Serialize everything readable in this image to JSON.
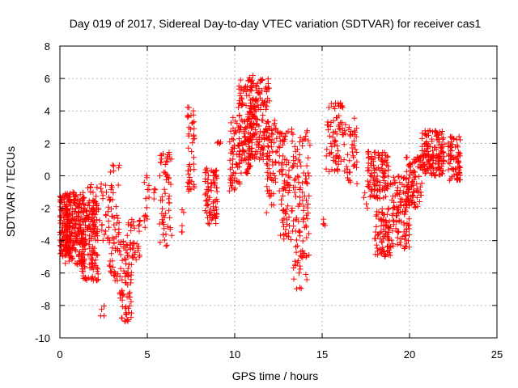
{
  "chart_data": {
    "type": "scatter",
    "title": "Day 019 of 2017, Sidereal Day-to-day VTEC variation (SDTVAR) for receiver cas1",
    "xlabel": "GPS time / hours",
    "ylabel": "SDTVAR / TECUs",
    "xlim": [
      0,
      25
    ],
    "ylim": [
      -10,
      8
    ],
    "xticks": [
      0,
      5,
      10,
      15,
      20,
      25
    ],
    "yticks": [
      -10,
      -8,
      -6,
      -4,
      -2,
      0,
      2,
      4,
      6,
      8
    ],
    "xtick_labels": [
      "0",
      "5",
      "10",
      "15",
      "20",
      "25"
    ],
    "ytick_labels": [
      "-10",
      "-8",
      "-6",
      "-4",
      "-2",
      "0",
      "2",
      "4",
      "6",
      "8"
    ],
    "grid": true,
    "marker": "+",
    "color": "#ff0000",
    "series": [
      {
        "name": "SDTVAR",
        "clusters": [
          {
            "x": [
              0.0,
              0.6
            ],
            "y": [
              -5.0,
              -1.2
            ],
            "n": 140
          },
          {
            "x": [
              0.3,
              1.4
            ],
            "y": [
              -5.5,
              -1.0
            ],
            "n": 200
          },
          {
            "x": [
              1.2,
              2.2
            ],
            "y": [
              -6.5,
              -1.5
            ],
            "n": 140
          },
          {
            "x": [
              1.6,
              2.8
            ],
            "y": [
              -4.0,
              -0.5
            ],
            "n": 60
          },
          {
            "x": [
              2.3,
              2.6
            ],
            "y": [
              -9.0,
              -8.0
            ],
            "n": 4
          },
          {
            "x": [
              2.8,
              3.4
            ],
            "y": [
              -6.5,
              0.8
            ],
            "n": 60
          },
          {
            "x": [
              3.4,
              4.1
            ],
            "y": [
              -9.0,
              -4.0
            ],
            "n": 70
          },
          {
            "x": [
              3.8,
              4.6
            ],
            "y": [
              -5.5,
              -2.5
            ],
            "n": 40
          },
          {
            "x": [
              4.8,
              5.1
            ],
            "y": [
              -3.5,
              0.3
            ],
            "n": 15
          },
          {
            "x": [
              5.3,
              5.5
            ],
            "y": [
              -1.5,
              -0.8
            ],
            "n": 4
          },
          {
            "x": [
              5.7,
              6.4
            ],
            "y": [
              -4.5,
              1.5
            ],
            "n": 60
          },
          {
            "x": [
              6.9,
              7.1
            ],
            "y": [
              -3.5,
              -2.0
            ],
            "n": 5
          },
          {
            "x": [
              7.3,
              7.7
            ],
            "y": [
              -1.0,
              4.6
            ],
            "n": 45
          },
          {
            "x": [
              8.3,
              9.0
            ],
            "y": [
              -3.0,
              0.5
            ],
            "n": 80
          },
          {
            "x": [
              9.0,
              9.2
            ],
            "y": [
              1.8,
              2.2
            ],
            "n": 5
          },
          {
            "x": [
              9.7,
              10.3
            ],
            "y": [
              -1.0,
              3.8
            ],
            "n": 60
          },
          {
            "x": [
              10.2,
              11.0
            ],
            "y": [
              0.0,
              6.0
            ],
            "n": 120
          },
          {
            "x": [
              10.8,
              12.0
            ],
            "y": [
              1.0,
              6.2
            ],
            "n": 170
          },
          {
            "x": [
              11.8,
              12.3
            ],
            "y": [
              -2.5,
              3.5
            ],
            "n": 50
          },
          {
            "x": [
              12.3,
              13.3
            ],
            "y": [
              -1.0,
              3.0
            ],
            "n": 60
          },
          {
            "x": [
              12.6,
              13.5
            ],
            "y": [
              -4.0,
              -0.5
            ],
            "n": 40
          },
          {
            "x": [
              13.3,
              14.3
            ],
            "y": [
              -7.0,
              3.0
            ],
            "n": 110
          },
          {
            "x": [
              15.0,
              15.2
            ],
            "y": [
              -3.5,
              -2.5
            ],
            "n": 4
          },
          {
            "x": [
              15.2,
              16.2
            ],
            "y": [
              0.2,
              4.5
            ],
            "n": 70
          },
          {
            "x": [
              16.2,
              17.0
            ],
            "y": [
              -0.5,
              3.6
            ],
            "n": 45
          },
          {
            "x": [
              17.3,
              17.6
            ],
            "y": [
              -2.0,
              -1.0
            ],
            "n": 4
          },
          {
            "x": [
              17.6,
              18.8
            ],
            "y": [
              -1.5,
              1.5
            ],
            "n": 110
          },
          {
            "x": [
              18.0,
              18.9
            ],
            "y": [
              -5.0,
              -2.0
            ],
            "n": 80
          },
          {
            "x": [
              18.9,
              20.0
            ],
            "y": [
              -4.5,
              0.0
            ],
            "n": 110
          },
          {
            "x": [
              19.8,
              20.7
            ],
            "y": [
              -2.0,
              1.2
            ],
            "n": 90
          },
          {
            "x": [
              20.7,
              22.0
            ],
            "y": [
              0.0,
              2.8
            ],
            "n": 150
          },
          {
            "x": [
              22.2,
              22.9
            ],
            "y": [
              -0.3,
              2.5
            ],
            "n": 70
          }
        ]
      }
    ]
  }
}
